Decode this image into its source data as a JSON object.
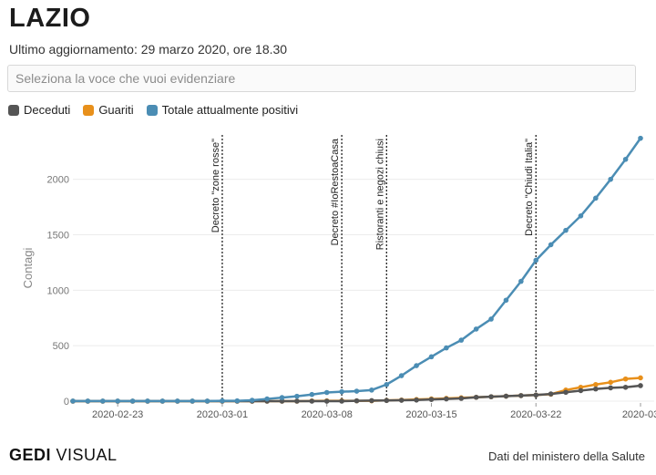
{
  "header": {
    "title": "LAZIO",
    "updated": "Ultimo aggiornamento: 29 marzo 2020, ore 18.30"
  },
  "search": {
    "placeholder": "Seleziona la voce che vuoi evidenziare"
  },
  "legend": [
    {
      "label": "Deceduti",
      "color": "#555555"
    },
    {
      "label": "Guariti",
      "color": "#e8901b"
    },
    {
      "label": "Totale attualmente positivi",
      "color": "#4b8db4"
    }
  ],
  "footer": {
    "logo_a": "GEDI",
    "logo_b": "VISUAL",
    "source": "Dati del ministero della Salute"
  },
  "chart_data": {
    "type": "line",
    "ylabel": "Contagi",
    "ylim": [
      0,
      2400
    ],
    "yticks": [
      0,
      500,
      1000,
      1500,
      2000
    ],
    "grid": true,
    "x_start": "2020-02-20",
    "xticks": [
      "2020-02-23",
      "2020-03-01",
      "2020-03-08",
      "2020-03-15",
      "2020-03-22",
      "2020-03"
    ],
    "x": [
      "2020-02-20",
      "2020-02-21",
      "2020-02-22",
      "2020-02-23",
      "2020-02-24",
      "2020-02-25",
      "2020-02-26",
      "2020-02-27",
      "2020-02-28",
      "2020-02-29",
      "2020-03-01",
      "2020-03-02",
      "2020-03-03",
      "2020-03-04",
      "2020-03-05",
      "2020-03-06",
      "2020-03-07",
      "2020-03-08",
      "2020-03-09",
      "2020-03-10",
      "2020-03-11",
      "2020-03-12",
      "2020-03-13",
      "2020-03-14",
      "2020-03-15",
      "2020-03-16",
      "2020-03-17",
      "2020-03-18",
      "2020-03-19",
      "2020-03-20",
      "2020-03-21",
      "2020-03-22",
      "2020-03-23",
      "2020-03-24",
      "2020-03-25",
      "2020-03-26",
      "2020-03-27",
      "2020-03-28",
      "2020-03-29"
    ],
    "series": [
      {
        "name": "Totale attualmente positivi",
        "color": "#4b8db4",
        "values": [
          1,
          1,
          1,
          1,
          1,
          1,
          1,
          1,
          1,
          1,
          3,
          3,
          8,
          20,
          32,
          44,
          60,
          78,
          85,
          90,
          100,
          150,
          230,
          320,
          400,
          480,
          550,
          650,
          740,
          910,
          1080,
          1270,
          1410,
          1540,
          1670,
          1830,
          2000,
          2180,
          2370
        ]
      },
      {
        "name": "Guariti",
        "color": "#e8901b",
        "values": [
          0,
          0,
          0,
          0,
          0,
          0,
          0,
          0,
          0,
          0,
          0,
          0,
          0,
          0,
          0,
          0,
          2,
          3,
          3,
          3,
          3,
          7,
          10,
          15,
          20,
          25,
          30,
          35,
          40,
          45,
          50,
          55,
          63,
          100,
          125,
          150,
          170,
          200,
          210
        ]
      },
      {
        "name": "Deceduti",
        "color": "#555555",
        "values": [
          0,
          0,
          0,
          0,
          0,
          0,
          0,
          0,
          0,
          0,
          0,
          0,
          0,
          0,
          0,
          0,
          0,
          0,
          0,
          3,
          5,
          6,
          8,
          10,
          15,
          20,
          25,
          35,
          40,
          45,
          50,
          55,
          65,
          80,
          95,
          110,
          120,
          125,
          140
        ]
      }
    ],
    "annotations": [
      {
        "date": "2020-03-01",
        "label": "Decreto \"zone rosse\""
      },
      {
        "date": "2020-03-09",
        "label": "Decreto #IoRestoaCasa"
      },
      {
        "date": "2020-03-12",
        "label": "Ristoranti e negozi chiusi"
      },
      {
        "date": "2020-03-22",
        "label": "Decreto \"Chiudi Italia\""
      }
    ]
  }
}
